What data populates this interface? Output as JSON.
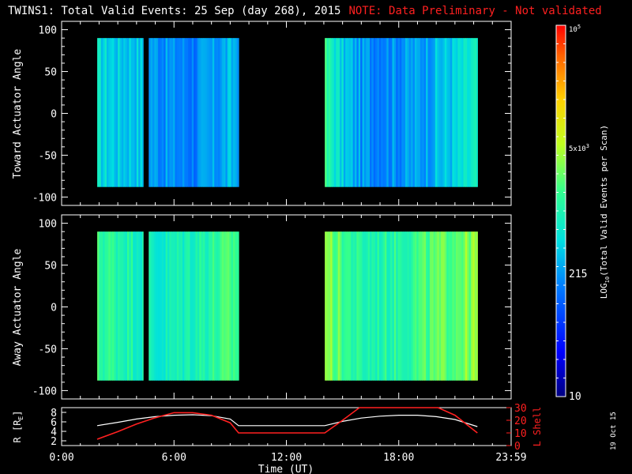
{
  "title": {
    "main": "TWINS1: Total Valid Events: 25 Sep (day 268), 2015",
    "note": "NOTE: Data Preliminary - Not validated"
  },
  "side_date": "19 Oct 15",
  "panels": {
    "top": {
      "ylabel": "Toward Actuator Angle",
      "yticks": [
        "100",
        "50",
        "0",
        "-50",
        "-100"
      ]
    },
    "bottom": {
      "ylabel": "Away Actuator Angle",
      "yticks": [
        "100",
        "50",
        "0",
        "-50",
        "-100"
      ]
    },
    "orbit": {
      "left_label": "R [R",
      "left_label_sub": "E",
      "left_label_end": "]",
      "left_ticks": [
        "8",
        "6",
        "4",
        "2"
      ],
      "right_label": "L Shell",
      "right_ticks": [
        "30",
        "20",
        "10",
        "0"
      ]
    }
  },
  "xaxis": {
    "label": "Time (UT)",
    "ticks": [
      "0:00",
      "6:00",
      "12:00",
      "18:00",
      "23:59"
    ]
  },
  "colorbar": {
    "label_prefix": "LOG",
    "label_sub": "10",
    "label_suffix": "(Total Valid Events per Scan)",
    "tick_10": "10",
    "tick_215": "215",
    "tick_5e3_base": "5x10",
    "tick_5e3_exp": "3",
    "tick_1e5_base": "10",
    "tick_1e5_exp": "5"
  },
  "colors": {
    "note": "#ff2020",
    "lshell": "#ff2020",
    "radius": "#ffffff"
  },
  "chart_data": [
    {
      "type": "heatmap",
      "name": "Toward Actuator Angle",
      "xlim_hours": [
        0,
        24
      ],
      "ylim": [
        -110,
        110
      ],
      "data_y_range": [
        -88,
        90
      ],
      "scale": "log10",
      "clim": [
        10,
        100000
      ],
      "segments_hours": [
        [
          1.9,
          4.35
        ],
        [
          4.65,
          9.45
        ],
        [
          14.05,
          22.2
        ]
      ],
      "mean_log_by_hour": {
        "2": 2.7,
        "3": 2.6,
        "4": 2.6,
        "5": 2.35,
        "6": 2.25,
        "7": 2.2,
        "8": 2.3,
        "9": 2.45,
        "14": 3.15,
        "15": 2.6,
        "16": 2.3,
        "17": 2.3,
        "18": 2.3,
        "19": 2.35,
        "20": 2.5,
        "21": 2.6,
        "22": 2.8
      }
    },
    {
      "type": "heatmap",
      "name": "Away Actuator Angle",
      "xlim_hours": [
        0,
        24
      ],
      "ylim": [
        -110,
        110
      ],
      "data_y_range": [
        -88,
        90
      ],
      "scale": "log10",
      "clim": [
        10,
        100000
      ],
      "segments_hours": [
        [
          1.9,
          4.35
        ],
        [
          4.65,
          9.45
        ],
        [
          14.05,
          22.2
        ]
      ],
      "mean_log_by_hour": {
        "2": 3.15,
        "3": 3.1,
        "4": 3.0,
        "5": 2.8,
        "6": 2.9,
        "7": 3.0,
        "8": 3.1,
        "9": 3.2,
        "14": 3.6,
        "15": 3.25,
        "16": 3.0,
        "17": 3.05,
        "18": 3.1,
        "19": 3.2,
        "20": 3.3,
        "21": 3.4,
        "22": 3.5
      }
    },
    {
      "type": "line",
      "name": "Orbit",
      "xlim_hours": [
        0,
        24
      ],
      "series": [
        {
          "name": "R [RE]",
          "axis": "left",
          "ylim": [
            1,
            9
          ],
          "color": "#ffffff",
          "x": [
            1.9,
            3,
            4,
            5,
            6,
            7,
            8,
            9,
            9.45,
            12,
            14.05,
            15,
            16,
            17,
            18,
            19,
            20,
            21,
            22.2
          ],
          "y": [
            5.2,
            5.9,
            6.6,
            7.1,
            7.4,
            7.5,
            7.3,
            6.6,
            5.2,
            5.2,
            5.2,
            6.1,
            6.8,
            7.2,
            7.4,
            7.4,
            7.1,
            6.5,
            5.0
          ]
        },
        {
          "name": "L Shell",
          "axis": "right",
          "ylim": [
            0,
            30
          ],
          "color": "#ff2020",
          "x": [
            1.9,
            3,
            4,
            5,
            6,
            7,
            8,
            9,
            9.45,
            12,
            14.05,
            15,
            15.9,
            20.1,
            21,
            22.2
          ],
          "y": [
            5,
            11,
            17,
            22,
            26,
            26,
            24,
            18,
            10,
            10,
            10,
            20,
            33,
            33,
            24,
            10
          ]
        }
      ]
    }
  ]
}
